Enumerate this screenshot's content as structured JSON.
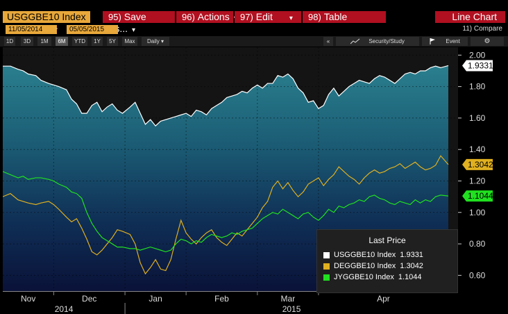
{
  "header": {
    "ticker": "USGGBE10 Index",
    "menu": [
      {
        "num": "95)",
        "label": "Save As...",
        "caret": "▾"
      },
      {
        "num": "96)",
        "label": "Actions",
        "caret": "▾"
      },
      {
        "num": "97)",
        "label": "Edit",
        "caret": "▾"
      },
      {
        "num": "98)",
        "label": "Table",
        "caret": ""
      }
    ],
    "chart_title": "Line Chart"
  },
  "dates": {
    "start": "11/05/2014",
    "separator": "-",
    "end": "05/05/2015",
    "compare": "11) Compare"
  },
  "toolbar": {
    "ranges": [
      "1D",
      "3D",
      "1M",
      "6M",
      "YTD",
      "1Y",
      "5Y",
      "Max"
    ],
    "active_range": "6M",
    "frequency": "Daily ▾",
    "collapse": "«",
    "security_study": "Security/Study",
    "event": "Event",
    "settings_icon": "gear-icon",
    "colors": {
      "menu_red": "#b01020",
      "ticker_orange": "#e8a83a"
    }
  },
  "chart_data": {
    "type": "line",
    "title": "",
    "xlabel": "",
    "ylabel": "",
    "ylim": [
      0.5,
      2.05
    ],
    "yticks": [
      "2.00",
      "1.80",
      "1.60",
      "1.40",
      "1.20",
      "1.00",
      "0.80",
      "0.60"
    ],
    "ytick_values": [
      2.0,
      1.8,
      1.6,
      1.4,
      1.2,
      1.0,
      0.8,
      0.6
    ],
    "x_month_labels": [
      "Nov",
      "Dec",
      "Jan",
      "Feb",
      "Mar",
      "Apr"
    ],
    "x_year_labels": [
      "2014",
      "2015"
    ],
    "x_range_days": [
      0,
      175
    ],
    "month_boundaries_days": [
      20,
      48,
      72,
      100,
      124
    ],
    "legend_title": "Last Price",
    "series": [
      {
        "name": "USGGBE10 Index",
        "color": "#ffffff",
        "last": "1.9331",
        "x": [
          0,
          3,
          6,
          8,
          10,
          13,
          15,
          18,
          20,
          22,
          25,
          27,
          29,
          31,
          33,
          35,
          37,
          39,
          41,
          43,
          45,
          47,
          50,
          52,
          54,
          56,
          58,
          60,
          62,
          64,
          66,
          68,
          70,
          72,
          74,
          76,
          78,
          80,
          82,
          84,
          86,
          88,
          90,
          92,
          94,
          96,
          98,
          100,
          102,
          104,
          106,
          108,
          110,
          112,
          114,
          116,
          118,
          120,
          122,
          124,
          126,
          128,
          130,
          132,
          134,
          136,
          138,
          140,
          142,
          144,
          146,
          148,
          150,
          152,
          154,
          156,
          158,
          160,
          162,
          164,
          166,
          168,
          170,
          172,
          175
        ],
        "y": [
          1.93,
          1.93,
          1.91,
          1.9,
          1.88,
          1.87,
          1.84,
          1.82,
          1.81,
          1.8,
          1.78,
          1.72,
          1.69,
          1.63,
          1.63,
          1.68,
          1.7,
          1.64,
          1.67,
          1.69,
          1.65,
          1.63,
          1.67,
          1.7,
          1.63,
          1.56,
          1.59,
          1.55,
          1.58,
          1.59,
          1.6,
          1.61,
          1.62,
          1.63,
          1.61,
          1.65,
          1.64,
          1.62,
          1.66,
          1.68,
          1.7,
          1.73,
          1.74,
          1.75,
          1.77,
          1.76,
          1.79,
          1.81,
          1.79,
          1.82,
          1.82,
          1.87,
          1.86,
          1.88,
          1.85,
          1.79,
          1.76,
          1.7,
          1.71,
          1.66,
          1.68,
          1.75,
          1.79,
          1.74,
          1.77,
          1.8,
          1.82,
          1.84,
          1.83,
          1.82,
          1.85,
          1.87,
          1.86,
          1.84,
          1.82,
          1.85,
          1.88,
          1.89,
          1.88,
          1.9,
          1.9,
          1.92,
          1.93,
          1.92,
          1.9331
        ]
      },
      {
        "name": "DEGGBE10 Index",
        "color": "#e0b020",
        "last": "1.3042",
        "x": [
          0,
          3,
          6,
          8,
          10,
          13,
          15,
          18,
          20,
          22,
          25,
          27,
          29,
          31,
          33,
          35,
          37,
          39,
          41,
          43,
          45,
          47,
          50,
          52,
          54,
          56,
          58,
          60,
          62,
          64,
          66,
          68,
          70,
          72,
          74,
          76,
          78,
          80,
          82,
          84,
          86,
          88,
          90,
          92,
          94,
          96,
          98,
          100,
          102,
          104,
          106,
          108,
          110,
          112,
          114,
          116,
          118,
          120,
          122,
          124,
          126,
          128,
          130,
          132,
          134,
          136,
          138,
          140,
          142,
          144,
          146,
          148,
          150,
          152,
          154,
          156,
          158,
          160,
          162,
          164,
          166,
          168,
          170,
          172,
          175
        ],
        "y": [
          1.1,
          1.12,
          1.08,
          1.07,
          1.06,
          1.05,
          1.06,
          1.07,
          1.05,
          1.02,
          0.97,
          0.94,
          0.96,
          0.9,
          0.83,
          0.75,
          0.73,
          0.76,
          0.8,
          0.84,
          0.89,
          0.88,
          0.86,
          0.8,
          0.68,
          0.61,
          0.65,
          0.7,
          0.64,
          0.63,
          0.7,
          0.83,
          0.95,
          0.87,
          0.83,
          0.8,
          0.84,
          0.87,
          0.89,
          0.84,
          0.81,
          0.79,
          0.83,
          0.87,
          0.85,
          0.89,
          0.93,
          0.97,
          1.03,
          1.07,
          1.16,
          1.2,
          1.15,
          1.19,
          1.14,
          1.1,
          1.13,
          1.18,
          1.2,
          1.22,
          1.17,
          1.21,
          1.24,
          1.29,
          1.26,
          1.23,
          1.21,
          1.18,
          1.22,
          1.25,
          1.27,
          1.25,
          1.26,
          1.28,
          1.29,
          1.31,
          1.28,
          1.3,
          1.32,
          1.29,
          1.27,
          1.28,
          1.3,
          1.36,
          1.3042
        ]
      },
      {
        "name": "JYGGBE10 Index",
        "color": "#20e020",
        "last": "1.1044",
        "x": [
          0,
          3,
          6,
          8,
          10,
          13,
          15,
          18,
          20,
          22,
          25,
          27,
          29,
          31,
          33,
          35,
          37,
          39,
          41,
          43,
          45,
          47,
          50,
          52,
          54,
          56,
          58,
          60,
          62,
          64,
          66,
          68,
          70,
          72,
          74,
          76,
          78,
          80,
          82,
          84,
          86,
          88,
          90,
          92,
          94,
          96,
          98,
          100,
          102,
          104,
          106,
          108,
          110,
          112,
          114,
          116,
          118,
          120,
          122,
          124,
          126,
          128,
          130,
          132,
          134,
          136,
          138,
          140,
          142,
          144,
          146,
          148,
          150,
          152,
          154,
          156,
          158,
          160,
          162,
          164,
          166,
          168,
          170,
          172,
          175
        ],
        "y": [
          1.26,
          1.24,
          1.22,
          1.23,
          1.21,
          1.22,
          1.22,
          1.21,
          1.2,
          1.18,
          1.16,
          1.13,
          1.12,
          1.09,
          1.0,
          0.93,
          0.88,
          0.84,
          0.82,
          0.8,
          0.78,
          0.78,
          0.77,
          0.77,
          0.76,
          0.77,
          0.78,
          0.77,
          0.76,
          0.75,
          0.76,
          0.8,
          0.83,
          0.82,
          0.8,
          0.82,
          0.81,
          0.84,
          0.86,
          0.85,
          0.84,
          0.85,
          0.87,
          0.86,
          0.88,
          0.89,
          0.9,
          0.93,
          0.96,
          0.98,
          1.0,
          0.99,
          1.02,
          1.0,
          0.98,
          0.96,
          0.99,
          1.0,
          0.97,
          0.95,
          0.98,
          1.02,
          1.0,
          1.04,
          1.03,
          1.05,
          1.06,
          1.08,
          1.07,
          1.1,
          1.11,
          1.09,
          1.08,
          1.06,
          1.05,
          1.07,
          1.06,
          1.05,
          1.08,
          1.06,
          1.08,
          1.07,
          1.1,
          1.11,
          1.1044
        ]
      }
    ]
  }
}
